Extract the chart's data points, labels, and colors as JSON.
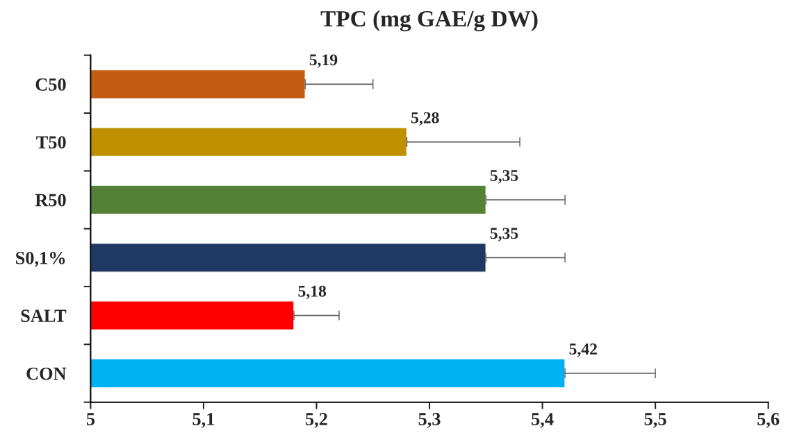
{
  "chart_data": {
    "type": "bar",
    "orientation": "horizontal",
    "title": "TPC (mg GAE/g DW)",
    "categories": [
      "C50",
      "T50",
      "R50",
      "S0,1%",
      "SALT",
      "CON"
    ],
    "values": [
      5.19,
      5.28,
      5.35,
      5.35,
      5.18,
      5.42
    ],
    "errors": [
      0.06,
      0.1,
      0.07,
      0.07,
      0.04,
      0.08
    ],
    "value_labels": [
      "5,19",
      "5,28",
      "5,35",
      "5,35",
      "5,18",
      "5,42"
    ],
    "colors": [
      "#c55a11",
      "#bf9000",
      "#538135",
      "#203864",
      "#ff0000",
      "#00b0f0"
    ],
    "xlim": [
      5,
      5.6
    ],
    "xticks": [
      5,
      {
        "value": 5.1,
        "label": "5,1"
      },
      {
        "value": 5.2,
        "label": "5,2"
      },
      {
        "value": 5.3,
        "label": "5,3"
      },
      {
        "value": 5.4,
        "label": "5,4"
      },
      {
        "value": 5.5,
        "label": "5,5"
      },
      {
        "value": 5.6,
        "label": "5,6"
      }
    ],
    "grid": false,
    "legend": false
  }
}
